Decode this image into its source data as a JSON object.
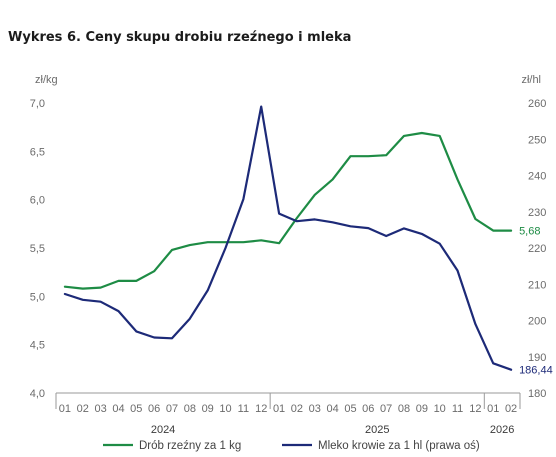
{
  "title": "Wykres 6. Ceny skupu drobiu rzeźnego i mleka",
  "chart_data": {
    "type": "line",
    "title": "Wykres 6. Ceny skupu drobiu rzeźnego i mleka",
    "ylabel_left": "zł/kg",
    "ylabel_right": "zł/hl",
    "ylim_left": [
      4.0,
      7.0
    ],
    "ylim_right": [
      180,
      260
    ],
    "yticks_left": [
      "4,0",
      "4,5",
      "5,0",
      "5,5",
      "6,0",
      "6,5",
      "7,0"
    ],
    "yticks_right": [
      "180",
      "190",
      "200",
      "210",
      "220",
      "230",
      "240",
      "250",
      "260"
    ],
    "x": [
      "01",
      "02",
      "03",
      "04",
      "05",
      "06",
      "07",
      "08",
      "09",
      "10",
      "11",
      "12",
      "01",
      "02",
      "03",
      "04",
      "05",
      "06",
      "07",
      "08",
      "09",
      "10",
      "11",
      "12",
      "01",
      "02"
    ],
    "year_groups": [
      {
        "label": "2024",
        "count": 12
      },
      {
        "label": "2025",
        "count": 12
      },
      {
        "label": "2026",
        "count": 2
      }
    ],
    "series": [
      {
        "name": "Drób rzeźny za 1 kg",
        "axis": "left",
        "color": "#1e8c45",
        "values": [
          5.1,
          5.08,
          5.09,
          5.16,
          5.16,
          5.26,
          5.48,
          5.53,
          5.56,
          5.56,
          5.56,
          5.58,
          5.55,
          5.81,
          6.05,
          6.21,
          6.45,
          6.45,
          6.46,
          6.66,
          6.69,
          6.66,
          6.21,
          5.8,
          5.68,
          5.68
        ],
        "end_label": "5,68"
      },
      {
        "name": "Mleko krowie za 1 hl (prawa oś)",
        "axis": "right",
        "color": "#1d2a78",
        "values": [
          207.3,
          205.7,
          205.2,
          202.6,
          197.0,
          195.3,
          195.1,
          200.5,
          208.3,
          220.0,
          233.5,
          259.0,
          229.5,
          227.4,
          227.9,
          227.1,
          226.0,
          225.5,
          223.3,
          225.4,
          223.9,
          221.2,
          213.8,
          199.0,
          188.2,
          186.44
        ],
        "end_label": "186,44"
      }
    ],
    "grid": false,
    "legend": "bottom"
  }
}
